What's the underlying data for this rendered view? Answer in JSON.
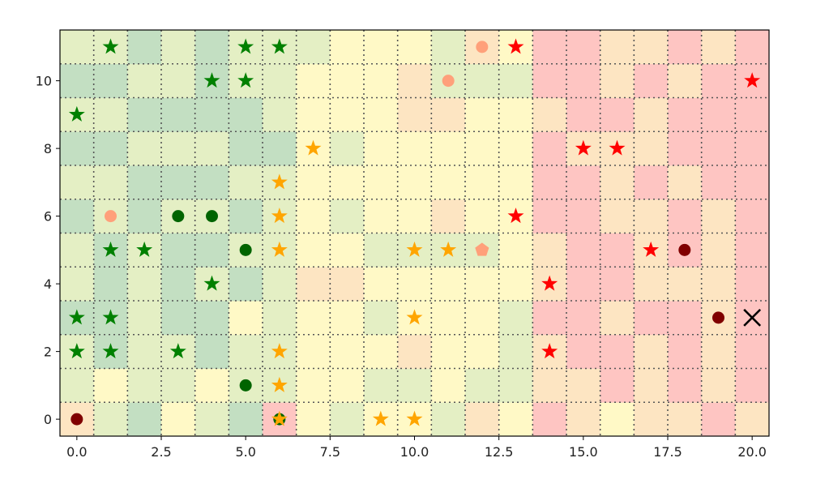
{
  "chart_data": {
    "type": "scatter",
    "title": "",
    "xlabel": "",
    "ylabel": "",
    "xlim": [
      -0.5,
      20.5
    ],
    "ylim": [
      -0.5,
      11.5
    ],
    "x_ticks": [
      0.0,
      2.5,
      5.0,
      7.5,
      10.0,
      12.5,
      15.0,
      17.5,
      20.0
    ],
    "x_tick_labels": [
      "0.0",
      "2.5",
      "5.0",
      "7.5",
      "10.0",
      "12.5",
      "15.0",
      "17.5",
      "20.0"
    ],
    "y_ticks": [
      0,
      2,
      4,
      6,
      8,
      10
    ],
    "y_tick_labels": [
      "0",
      "2",
      "4",
      "6",
      "8",
      "10"
    ],
    "grid": "dotted",
    "background_grid": {
      "columns": 21,
      "rows": 12,
      "palette": [
        "#c3dfc2",
        "#e4efc4",
        "#fff9c6",
        "#fde5c2",
        "#fec5c2"
      ],
      "rows_bottom_to_top": [
        [
          3,
          1,
          0,
          2,
          1,
          0,
          4,
          2,
          1,
          2,
          2,
          1,
          3,
          2,
          4,
          3,
          2,
          3,
          3,
          4,
          3
        ],
        [
          1,
          2,
          1,
          1,
          2,
          1,
          1,
          2,
          2,
          1,
          1,
          2,
          1,
          1,
          3,
          3,
          4,
          3,
          4,
          3,
          4
        ],
        [
          1,
          0,
          1,
          1,
          0,
          1,
          1,
          2,
          2,
          2,
          3,
          2,
          2,
          1,
          3,
          4,
          4,
          3,
          4,
          3,
          4
        ],
        [
          0,
          0,
          1,
          0,
          0,
          2,
          1,
          2,
          2,
          1,
          2,
          2,
          2,
          1,
          4,
          4,
          3,
          4,
          4,
          3,
          4
        ],
        [
          1,
          0,
          1,
          0,
          1,
          0,
          1,
          3,
          3,
          2,
          2,
          2,
          2,
          2,
          3,
          4,
          4,
          3,
          3,
          3,
          4
        ],
        [
          1,
          0,
          1,
          0,
          0,
          1,
          1,
          2,
          2,
          1,
          1,
          1,
          1,
          2,
          3,
          4,
          4,
          3,
          4,
          3,
          4
        ],
        [
          0,
          1,
          0,
          1,
          1,
          0,
          1,
          2,
          1,
          2,
          2,
          3,
          2,
          2,
          4,
          4,
          3,
          3,
          4,
          3,
          4
        ],
        [
          1,
          1,
          0,
          0,
          0,
          1,
          1,
          2,
          2,
          2,
          2,
          2,
          2,
          2,
          4,
          4,
          3,
          4,
          3,
          4,
          4
        ],
        [
          0,
          0,
          1,
          1,
          1,
          0,
          0,
          2,
          1,
          2,
          2,
          2,
          2,
          2,
          4,
          3,
          3,
          3,
          4,
          4,
          4
        ],
        [
          1,
          1,
          0,
          0,
          0,
          0,
          1,
          2,
          2,
          2,
          3,
          3,
          2,
          2,
          3,
          4,
          4,
          3,
          4,
          4,
          4
        ],
        [
          0,
          0,
          1,
          1,
          0,
          1,
          1,
          2,
          2,
          2,
          3,
          1,
          1,
          1,
          4,
          4,
          3,
          4,
          3,
          4,
          4
        ],
        [
          1,
          1,
          0,
          1,
          0,
          1,
          1,
          1,
          2,
          2,
          2,
          1,
          3,
          2,
          4,
          4,
          3,
          3,
          4,
          3,
          4
        ]
      ]
    },
    "marker_colors": {
      "dark_red": "#800000",
      "salmon": "#ffa07a",
      "dark_green": "#006400",
      "green": "#008000",
      "orange": "#ffa500",
      "red": "#ff0000",
      "black": "#000000"
    },
    "series": [
      {
        "marker": "circle",
        "color": "#800000",
        "points": [
          [
            0,
            0
          ],
          [
            18,
            5
          ],
          [
            19,
            3
          ]
        ]
      },
      {
        "marker": "circle",
        "color": "#ffa07a",
        "points": [
          [
            1,
            6
          ],
          [
            11,
            10
          ],
          [
            12,
            11
          ]
        ]
      },
      {
        "marker": "circle",
        "color": "#006400",
        "points": [
          [
            3,
            6
          ],
          [
            4,
            6
          ],
          [
            5,
            5
          ],
          [
            5,
            1
          ],
          [
            6,
            0
          ]
        ]
      },
      {
        "marker": "star",
        "color": "#008000",
        "points": [
          [
            0,
            2
          ],
          [
            0,
            3
          ],
          [
            0,
            9
          ],
          [
            1,
            2
          ],
          [
            1,
            3
          ],
          [
            1,
            5
          ],
          [
            1,
            11
          ],
          [
            2,
            5
          ],
          [
            3,
            2
          ],
          [
            4,
            4
          ],
          [
            4,
            10
          ],
          [
            5,
            10
          ],
          [
            5,
            11
          ],
          [
            6,
            11
          ]
        ]
      },
      {
        "marker": "star",
        "color": "#ffa500",
        "points": [
          [
            6,
            0
          ],
          [
            6,
            1
          ],
          [
            6,
            2
          ],
          [
            6,
            5
          ],
          [
            6,
            6
          ],
          [
            6,
            7
          ],
          [
            7,
            8
          ],
          [
            9,
            0
          ],
          [
            10,
            0
          ],
          [
            10,
            3
          ],
          [
            10,
            5
          ],
          [
            11,
            5
          ]
        ]
      },
      {
        "marker": "star",
        "color": "#ff0000",
        "points": [
          [
            13,
            6
          ],
          [
            13,
            11
          ],
          [
            14,
            2
          ],
          [
            14,
            4
          ],
          [
            15,
            8
          ],
          [
            16,
            8
          ],
          [
            17,
            5
          ],
          [
            20,
            10
          ]
        ]
      },
      {
        "marker": "pentagon",
        "color": "#ffa07a",
        "points": [
          [
            12,
            5
          ]
        ]
      },
      {
        "marker": "x",
        "color": "#000000",
        "points": [
          [
            20,
            3
          ]
        ]
      }
    ]
  }
}
